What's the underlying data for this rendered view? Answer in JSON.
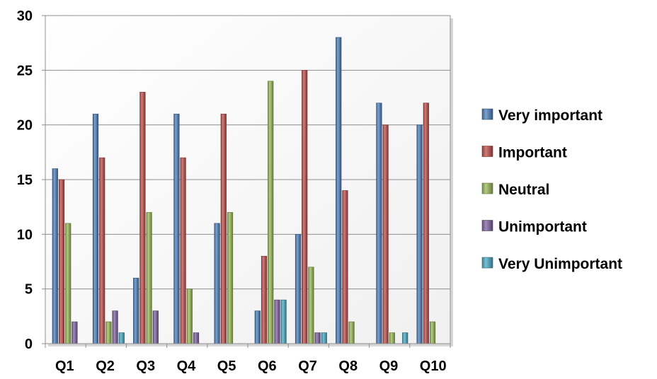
{
  "chart_data": {
    "type": "bar",
    "title": "",
    "xlabel": "",
    "ylabel": "",
    "ylim": [
      0,
      30
    ],
    "yticks": [
      "0",
      "5",
      "10",
      "15",
      "20",
      "25",
      "30"
    ],
    "grid": true,
    "legend_position": "right",
    "categories": [
      "Q1",
      "Q2",
      "Q3",
      "Q4",
      "Q5",
      "Q6",
      "Q7",
      "Q8",
      "Q9",
      "Q10"
    ],
    "series": [
      {
        "name": "Very important",
        "color": "#4F81BD",
        "values": [
          16,
          21,
          6,
          21,
          11,
          3,
          10,
          28,
          22,
          20
        ]
      },
      {
        "name": "Important",
        "color": "#C0504D",
        "values": [
          15,
          17,
          23,
          17,
          21,
          8,
          25,
          14,
          20,
          22
        ]
      },
      {
        "name": "Neutral",
        "color": "#9BBB59",
        "values": [
          11,
          2,
          12,
          5,
          12,
          24,
          7,
          2,
          1,
          2
        ]
      },
      {
        "name": "Unimportant",
        "color": "#8064A2",
        "values": [
          2,
          3,
          3,
          1,
          0,
          4,
          1,
          0,
          0,
          0
        ]
      },
      {
        "name": "Very Unimportant",
        "color": "#4BACC6",
        "values": [
          0,
          1,
          0,
          0,
          0,
          4,
          1,
          0,
          1,
          0
        ]
      }
    ]
  }
}
